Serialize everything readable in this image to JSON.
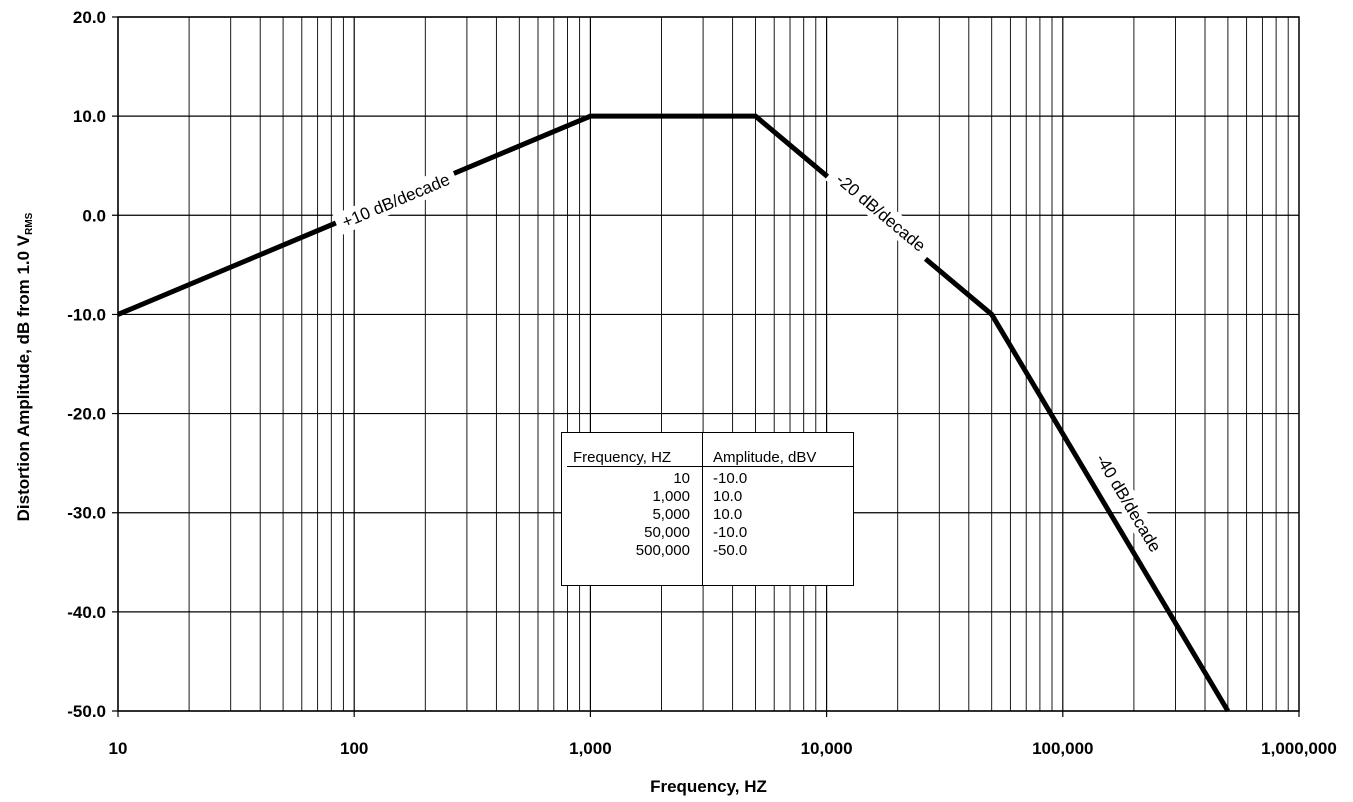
{
  "chart_data": {
    "type": "line",
    "xscale": "log",
    "xlim": [
      10,
      1000000
    ],
    "ylim": [
      -50,
      20
    ],
    "xlabel": "Frequency, HZ",
    "ylabel": "Distortion Amplitude, dB from 1.0 V",
    "ylabel_subscript": "RMS",
    "x_ticks": [
      10,
      100,
      1000,
      10000,
      100000,
      1000000
    ],
    "x_tick_labels": [
      "10",
      "100",
      "1,000",
      "10,000",
      "100,000",
      "1,000,000"
    ],
    "y_ticks": [
      20,
      10,
      0,
      -10,
      -20,
      -30,
      -40,
      -50
    ],
    "y_tick_labels": [
      "20.0",
      "10.0",
      "0.0",
      "-10.0",
      "-20.0",
      "-30.0",
      "-40.0",
      "-50.0"
    ],
    "grid": true,
    "series": [
      {
        "x": [
          10,
          1000,
          5000,
          50000,
          500000
        ],
        "y": [
          -10,
          10,
          10,
          -10,
          -50
        ]
      }
    ],
    "annotations": [
      {
        "text": "+10 dB/decade",
        "x": 150,
        "y": 1.5
      },
      {
        "text": "-20 dB/decade",
        "x": 17000,
        "y": 0.3
      },
      {
        "text": "-40 dB/decade",
        "x": 190000,
        "y": -29
      }
    ],
    "table": {
      "headers": [
        "Frequency, HZ",
        "Amplitude, dBV"
      ],
      "rows": [
        [
          "10",
          "-10.0"
        ],
        [
          "1,000",
          "10.0"
        ],
        [
          "5,000",
          "10.0"
        ],
        [
          "50,000",
          "-10.0"
        ],
        [
          "500,000",
          "-50.0"
        ]
      ]
    },
    "colors": {
      "line": "#000000",
      "grid": "#000000",
      "background": "#ffffff"
    }
  }
}
